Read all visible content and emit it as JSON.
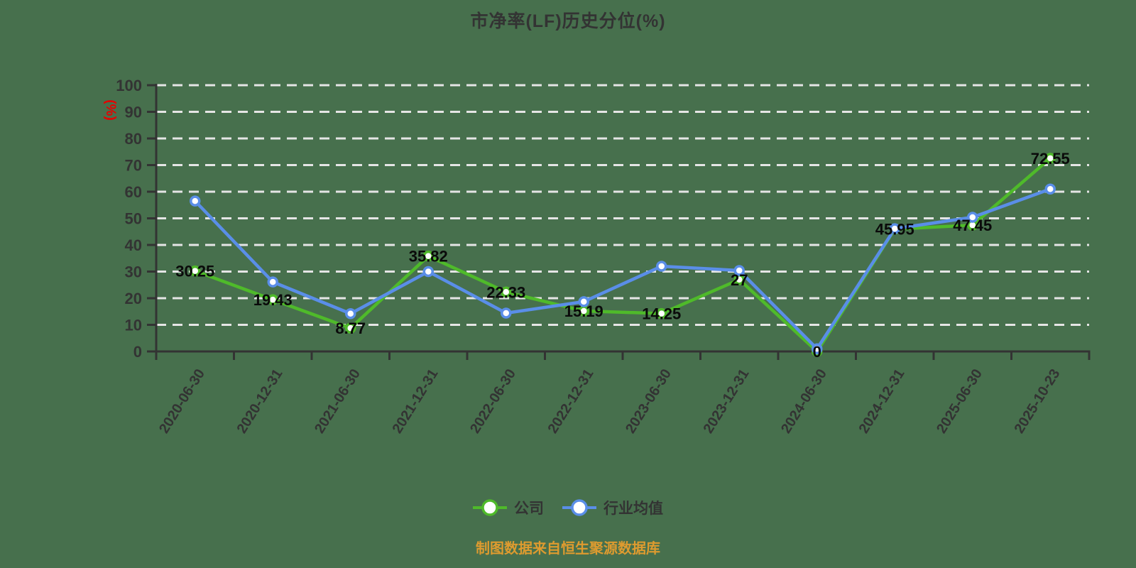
{
  "page": {
    "background_color": "#47704D"
  },
  "chart_data": {
    "type": "line",
    "title": "市净率(LF)历史分位(%)",
    "unit_label": "(%)",
    "unit_label_color": "#e60000",
    "categories": [
      "2020-06-30",
      "2020-12-31",
      "2021-06-30",
      "2021-12-31",
      "2022-06-30",
      "2022-12-31",
      "2023-06-30",
      "2023-12-31",
      "2024-06-30",
      "2024-12-31",
      "2025-06-30",
      "2025-10-23"
    ],
    "series": [
      {
        "name": "公司",
        "color": "#4FBA2A",
        "show_labels": true,
        "values": [
          30.25,
          19.43,
          8.77,
          35.82,
          22.33,
          15.19,
          14.25,
          27,
          0,
          45.95,
          47.45,
          72.55
        ],
        "labels": [
          "30.25",
          "19.43",
          "8.77",
          "35.82",
          "22.33",
          "15.19",
          "14.25",
          "27",
          "0",
          "45.95",
          "47.45",
          "72.55"
        ]
      },
      {
        "name": "行业均值",
        "color": "#5A8EE8",
        "show_labels": false,
        "values": [
          56.5,
          26.1,
          14.2,
          30,
          14.4,
          18.7,
          32,
          30.4,
          1,
          46.1,
          50.4,
          61
        ]
      }
    ],
    "ylim": [
      0,
      100
    ],
    "ytick_step": 10,
    "yticks": [
      0,
      10,
      20,
      30,
      40,
      50,
      60,
      70,
      80,
      90,
      100
    ],
    "grid": "horizontal-dashed",
    "grid_color": "#E5E5E5",
    "axis_color": "#333333",
    "label_color": "#0a0a0a",
    "tick_label_color": "#333333",
    "legend_position": "bottom",
    "marker": "circle-white-fill"
  },
  "caption": {
    "text": "制图数据来自恒生聚源数据库",
    "color": "#DE9B2F"
  }
}
